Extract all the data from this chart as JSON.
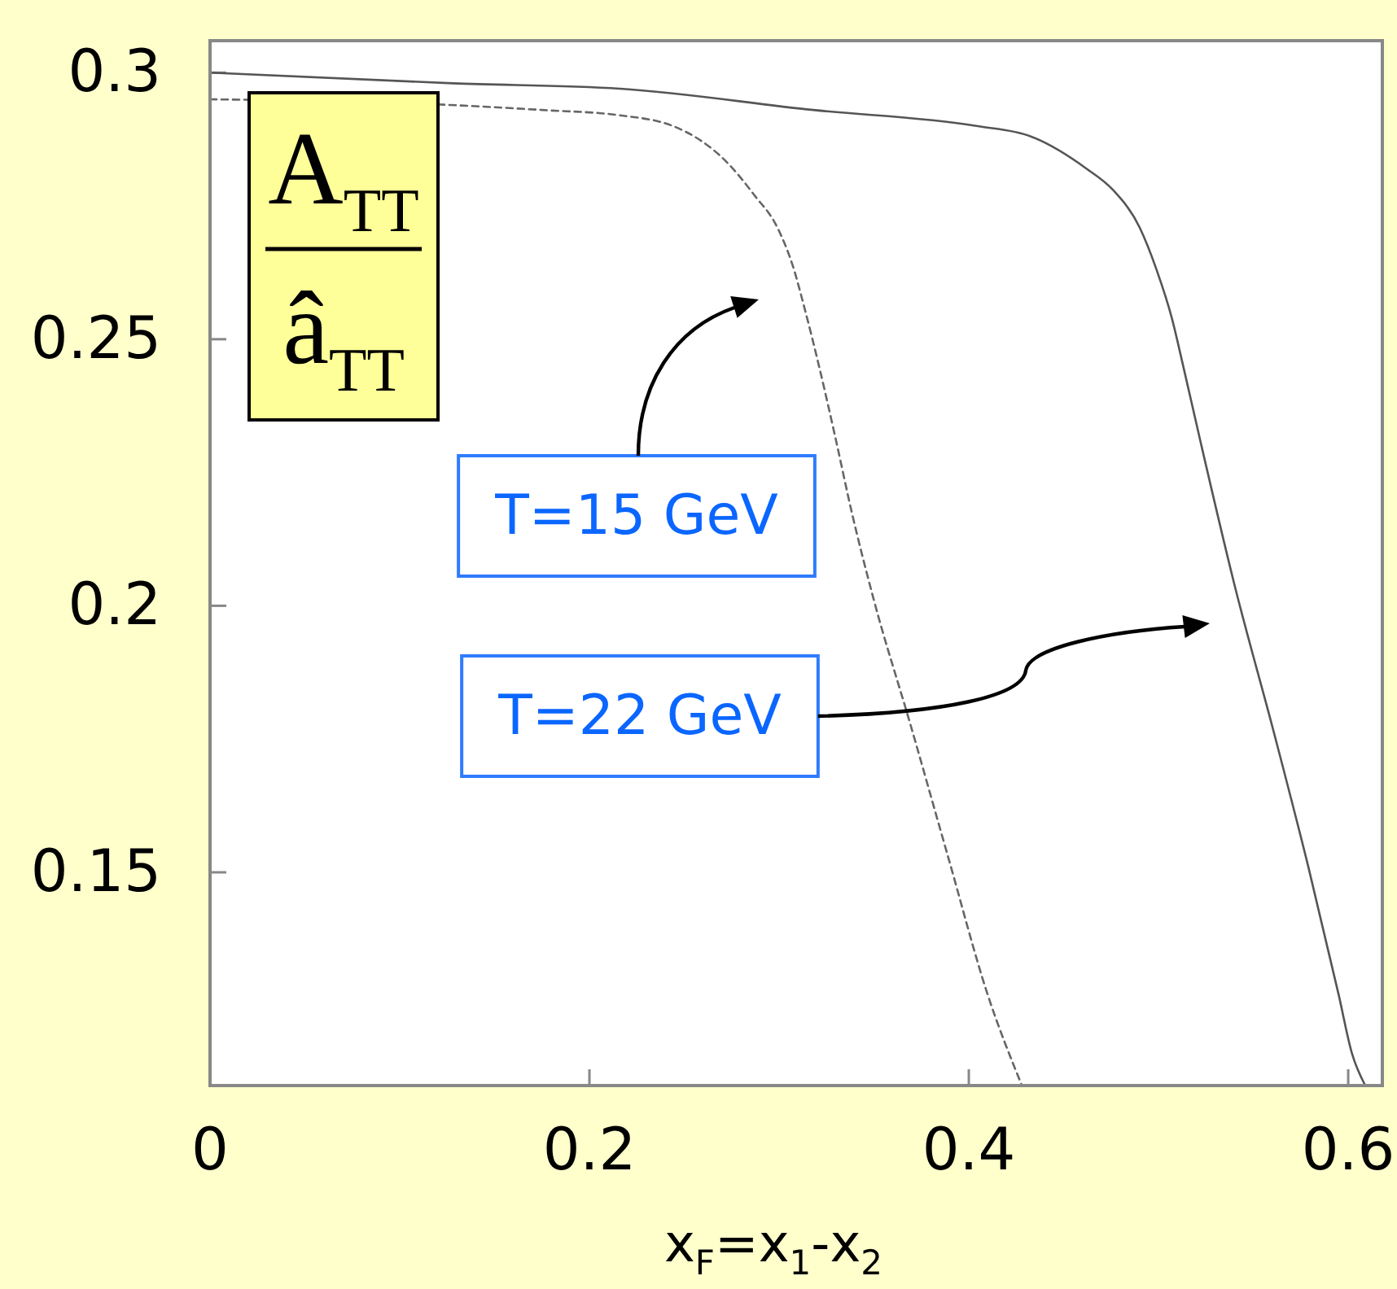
{
  "chart_data": {
    "type": "line",
    "ylabel": "A$_{TT}$\nâ$_{TT}$",
    "xlabel": "x$_{F}$=x$_{1}$-x$_{2}$",
    "xlim": [
      0,
      0.618
    ],
    "ylim": [
      0.11,
      0.306
    ],
    "xticks": [
      0,
      0.2,
      0.4,
      0.6
    ],
    "yticks": [
      0.15,
      0.2,
      0.25,
      0.3
    ],
    "annotations": [
      "T=15 GeV",
      "T=22 GeV"
    ],
    "series": [
      {
        "color": "#666666",
        "line_style": "dashed",
        "x": [
          0,
          0.123,
          0.175,
          0.216,
          0.244,
          0.273,
          0.287,
          0.299,
          0.307,
          0.314,
          0.321,
          0.33,
          0.338,
          0.35,
          0.369,
          0.389,
          0.41,
          0.428
        ],
        "values": [
          0.295,
          0.294,
          0.293,
          0.292,
          0.29,
          0.283,
          0.277,
          0.271,
          0.264,
          0.255,
          0.245,
          0.231,
          0.218,
          0.201,
          0.178,
          0.153,
          0.127,
          0.11
        ]
      },
      {
        "color": "#555555",
        "line_style": "solid",
        "x": [
          0,
          0.128,
          0.216,
          0.318,
          0.404,
          0.433,
          0.462,
          0.476,
          0.49,
          0.499,
          0.507,
          0.513,
          0.522,
          0.54,
          0.561,
          0.579,
          0.595,
          0.602,
          0.609
        ],
        "values": [
          0.3,
          0.298,
          0.297,
          0.293,
          0.29,
          0.288,
          0.282,
          0.278,
          0.271,
          0.263,
          0.254,
          0.245,
          0.231,
          0.204,
          0.176,
          0.151,
          0.127,
          0.116,
          0.11
        ]
      }
    ]
  }
}
